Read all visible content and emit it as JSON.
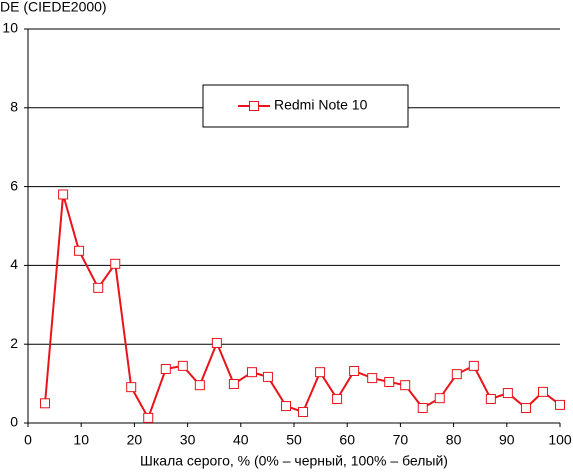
{
  "chart_data": {
    "type": "line",
    "y_label": "DE (CIEDE2000)",
    "x_label": "Шкала серого, % (0% – черный, 100% – белый)",
    "x": [
      3.2,
      6.6,
      9.6,
      13.2,
      16.4,
      19.4,
      22.6,
      25.9,
      29.1,
      32.3,
      35.5,
      38.7,
      42.1,
      45.1,
      48.5,
      51.7,
      54.9,
      58.1,
      61.3,
      64.7,
      67.9,
      70.9,
      74.2,
      77.4,
      80.6,
      83.8,
      87.0,
      90.2,
      93.6,
      96.8,
      100
    ],
    "series": [
      {
        "name": "Redmi Note 10",
        "color": "#e8141b",
        "values": [
          0.5,
          5.8,
          4.37,
          3.43,
          4.04,
          0.91,
          0.13,
          1.37,
          1.45,
          0.96,
          2.03,
          0.99,
          1.29,
          1.17,
          0.43,
          0.28,
          1.29,
          0.61,
          1.32,
          1.14,
          1.04,
          0.96,
          0.38,
          0.63,
          1.24,
          1.45,
          0.61,
          0.76,
          0.38,
          0.79,
          0.46
        ]
      }
    ],
    "xlim": [
      0,
      100
    ],
    "xticks": [
      0,
      10,
      20,
      30,
      40,
      50,
      60,
      70,
      80,
      90,
      100
    ],
    "ylim": [
      0,
      10
    ],
    "yticks": [
      0,
      2,
      4,
      6,
      8,
      10
    ],
    "grid": true
  }
}
